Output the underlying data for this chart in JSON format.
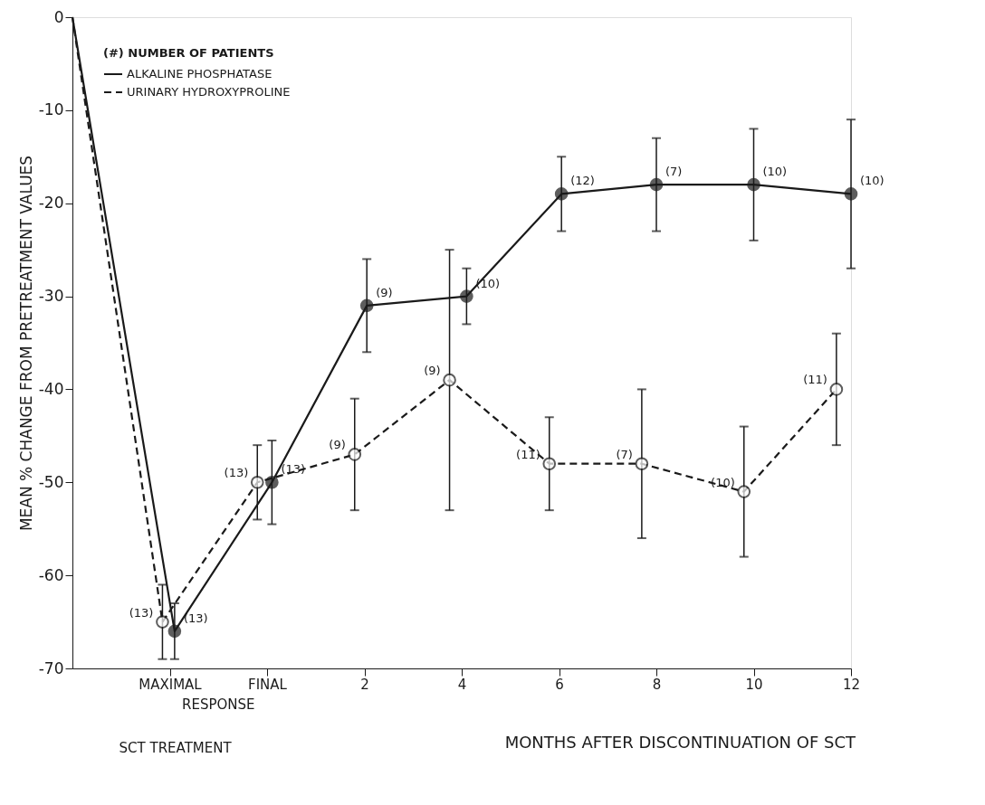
{
  "chart_data": {
    "type": "line",
    "xlabel": "MONTHS AFTER DISCONTINUATION OF SCT",
    "ylabel": "MEAN % CHANGE FROM PRETREATMENT VALUES",
    "legend_title": "(#) NUMBER OF PATIENTS",
    "legend": "top left",
    "grid": false,
    "marker": "circle",
    "xlim": [
      -4,
      12
    ],
    "xticks": [
      {
        "value": -2,
        "label": "MAXIMAL"
      },
      {
        "value": 0,
        "label": "FINAL"
      },
      2,
      4,
      6,
      8,
      10,
      12
    ],
    "ylim": [
      -70,
      0
    ],
    "yticks": [
      0,
      -10,
      -20,
      -30,
      -40,
      -50,
      -60,
      -70
    ],
    "annotations": [
      "RESPONSE",
      "SCT TREATMENT",
      {
        "text": "(13)",
        "x": -1.9,
        "y": -66
      },
      {
        "text": "(13)",
        "x": 0.1,
        "y": -50
      },
      {
        "text": "(9)",
        "x": 2.05,
        "y": -31
      },
      {
        "text": "(10)",
        "x": 4.1,
        "y": -30
      },
      {
        "text": "(12)",
        "x": 6.05,
        "y": -19
      },
      {
        "text": "(7)",
        "x": 8,
        "y": -18
      },
      {
        "text": "(10)",
        "x": 10,
        "y": -18
      },
      {
        "text": "(10)",
        "x": 12,
        "y": -19
      },
      {
        "text": "(13)",
        "x": -2.15,
        "y": -65
      },
      {
        "text": "(13)",
        "x": -0.2,
        "y": -50
      },
      {
        "text": "(9)",
        "x": 1.8,
        "y": -47
      },
      {
        "text": "(9)",
        "x": 3.75,
        "y": -39
      },
      {
        "text": "(11)",
        "x": 5.8,
        "y": -48
      },
      {
        "text": "(7)",
        "x": 7.7,
        "y": -48
      },
      {
        "text": "(10)",
        "x": 9.8,
        "y": -51
      },
      {
        "text": "(11)",
        "x": 11.7,
        "y": -40
      }
    ],
    "series": [
      {
        "name": "ALKALINE PHOSPHATASE",
        "color": "#1a1a1a",
        "line_style": "solid",
        "x": [
          -4,
          -1.9,
          0.1,
          2.05,
          4.1,
          6.05,
          8,
          10,
          12
        ],
        "values": [
          0,
          -66,
          -50,
          -31,
          -30,
          -19,
          -18,
          -18,
          -19
        ],
        "errors": [
          null,
          [
            -69,
            -63
          ],
          [
            -54.5,
            -45.5
          ],
          [
            -36,
            -26
          ],
          [
            -33,
            -27
          ],
          [
            -23,
            -15
          ],
          [
            -23,
            -13
          ],
          [
            -24,
            -12
          ],
          [
            -27,
            -11
          ]
        ]
      },
      {
        "name": "URINARY HYDROXYPROLINE",
        "color": "#1a1a1a",
        "line_style": "dashed",
        "x": [
          -4,
          -2.15,
          -0.2,
          1.8,
          3.75,
          5.8,
          7.7,
          9.8,
          11.7
        ],
        "values": [
          0,
          -65,
          -50,
          -47,
          -39,
          -48,
          -48,
          -51,
          -40
        ],
        "errors": [
          null,
          [
            -69,
            -61
          ],
          [
            -54,
            -46
          ],
          [
            -53,
            -41
          ],
          [
            -53,
            -25
          ],
          [
            -53,
            -43
          ],
          [
            -56,
            -40
          ],
          [
            -58,
            -44
          ],
          [
            -46,
            -34
          ]
        ]
      }
    ]
  }
}
